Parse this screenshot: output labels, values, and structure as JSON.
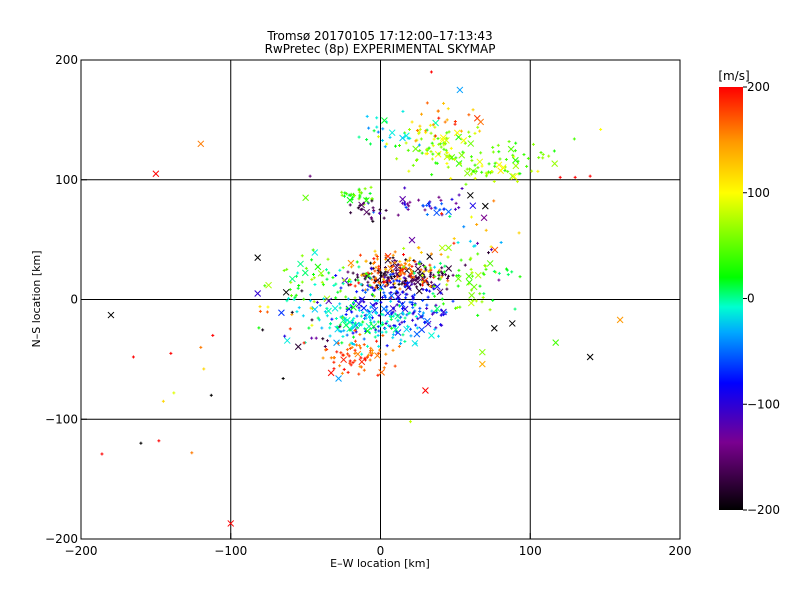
{
  "chart_data": {
    "type": "scatter",
    "title": "Tromsø 20170105 17:12:00–17:13:43",
    "subtitle": "RwPretec (8p) EXPERIMENTAL SKYMAP",
    "xlabel": "E–W location [km]",
    "ylabel": "N–S location [km]",
    "xlim": [
      -200,
      200
    ],
    "ylim": [
      -200,
      200
    ],
    "xticks": [
      -200,
      -100,
      0,
      100,
      200
    ],
    "yticks": [
      -200,
      -100,
      0,
      100,
      200
    ],
    "x_tick_labels": [
      "−200",
      "−100",
      "0",
      "100",
      "200"
    ],
    "y_tick_labels": [
      "−200",
      "−100",
      "0",
      "100",
      "200"
    ],
    "grid": true,
    "colorbar": {
      "label": "[m/s]",
      "range": [
        -200,
        200
      ],
      "ticks": [
        200,
        100,
        0,
        -100,
        -200
      ],
      "tick_labels": [
        "200",
        "100",
        "0",
        "−100",
        "−200"
      ],
      "colors": [
        "#000000",
        "#7a0090",
        "#0000ff",
        "#00e0ff",
        "#00ff00",
        "#ffff00",
        "#ff0000"
      ]
    },
    "marker_legend": "x = cross marker, + = plus marker",
    "points": [
      {
        "x": -150,
        "y": 105,
        "v": 200,
        "m": "x"
      },
      {
        "x": -120,
        "y": 130,
        "v": 160,
        "m": "x"
      },
      {
        "x": -180,
        "y": -13,
        "v": -200,
        "m": "x"
      },
      {
        "x": -100,
        "y": -187,
        "v": 200,
        "m": "x"
      },
      {
        "x": 160,
        "y": -17,
        "v": 150,
        "m": "x"
      },
      {
        "x": 140,
        "y": -48,
        "v": -200,
        "m": "x"
      },
      {
        "x": 117,
        "y": -36,
        "v": 40,
        "m": "x"
      },
      {
        "x": 88,
        "y": -20,
        "v": -200,
        "m": "x"
      },
      {
        "x": 76,
        "y": -24,
        "v": -200,
        "m": "x"
      },
      {
        "x": 68,
        "y": -54,
        "v": 140,
        "m": "x"
      },
      {
        "x": 68,
        "y": -44,
        "v": 60,
        "m": "x"
      },
      {
        "x": 30,
        "y": -76,
        "v": 200,
        "m": "x"
      },
      {
        "x": 53,
        "y": 175,
        "v": -50,
        "m": "x"
      },
      {
        "x": 60,
        "y": 87,
        "v": -200,
        "m": "x"
      },
      {
        "x": 70,
        "y": 78,
        "v": -200,
        "m": "x"
      },
      {
        "x": -50,
        "y": 85,
        "v": 50,
        "m": "x"
      },
      {
        "x": -82,
        "y": 5,
        "v": -110,
        "m": "x"
      },
      {
        "x": -82,
        "y": 35,
        "v": -200,
        "m": "x"
      },
      {
        "x": -63,
        "y": 6,
        "v": -200,
        "m": "x"
      },
      {
        "x": -28,
        "y": -66,
        "v": -50,
        "m": "x"
      },
      {
        "x": -165,
        "y": -48,
        "v": 200,
        "m": "+"
      },
      {
        "x": -140,
        "y": -45,
        "v": 200,
        "m": "+"
      },
      {
        "x": -148,
        "y": -118,
        "v": 200,
        "m": "+"
      },
      {
        "x": -160,
        "y": -120,
        "v": -200,
        "m": "+"
      },
      {
        "x": -186,
        "y": -129,
        "v": 200,
        "m": "+"
      },
      {
        "x": -126,
        "y": -128,
        "v": 160,
        "m": "+"
      },
      {
        "x": -113,
        "y": -80,
        "v": -200,
        "m": "+"
      },
      {
        "x": -118,
        "y": -58,
        "v": 120,
        "m": "+"
      },
      {
        "x": -112,
        "y": -30,
        "v": 200,
        "m": "+"
      },
      {
        "x": -120,
        "y": -40,
        "v": 160,
        "m": "+"
      },
      {
        "x": -145,
        "y": -85,
        "v": 120,
        "m": "+"
      },
      {
        "x": -138,
        "y": -78,
        "v": 90,
        "m": "+"
      },
      {
        "x": 34,
        "y": 190,
        "v": 200,
        "m": "+"
      },
      {
        "x": 120,
        "y": 102,
        "v": 200,
        "m": "+"
      },
      {
        "x": 130,
        "y": 102,
        "v": 200,
        "m": "+"
      },
      {
        "x": 140,
        "y": 103,
        "v": 200,
        "m": "+"
      },
      {
        "x": 147,
        "y": 142,
        "v": 100,
        "m": "+"
      },
      {
        "x": -65,
        "y": -66,
        "v": -200,
        "m": "+"
      },
      {
        "x": 20,
        "y": -102,
        "v": 80,
        "m": "+"
      },
      {
        "x": -47,
        "y": 103,
        "v": -150,
        "m": "+"
      }
    ],
    "clusters": [
      {
        "cx": 35,
        "cy": 128,
        "sx": 20,
        "sy": 12,
        "n": 75,
        "vmin": 30,
        "vmax": 110
      },
      {
        "cx": 5,
        "cy": 140,
        "sx": 18,
        "sy": 10,
        "n": 25,
        "vmin": -60,
        "vmax": 30
      },
      {
        "cx": 65,
        "cy": 110,
        "sx": 22,
        "sy": 8,
        "n": 55,
        "vmin": 30,
        "vmax": 110
      },
      {
        "cx": 40,
        "cy": 150,
        "sx": 20,
        "sy": 10,
        "n": 25,
        "vmin": 110,
        "vmax": 200
      },
      {
        "cx": 105,
        "cy": 120,
        "sx": 25,
        "sy": 12,
        "n": 25,
        "vmin": 20,
        "vmax": 70
      },
      {
        "cx": 30,
        "cy": 78,
        "sx": 25,
        "sy": 8,
        "n": 45,
        "vmin": -150,
        "vmax": -60
      },
      {
        "cx": -15,
        "cy": 87,
        "sx": 10,
        "sy": 6,
        "n": 28,
        "vmin": 10,
        "vmax": 70
      },
      {
        "cx": -10,
        "cy": 75,
        "sx": 10,
        "sy": 6,
        "n": 18,
        "vmin": -200,
        "vmax": -150
      },
      {
        "cx": 15,
        "cy": 20,
        "sx": 22,
        "sy": 9,
        "n": 150,
        "vmin": -200,
        "vmax": -150
      },
      {
        "cx": 10,
        "cy": 25,
        "sx": 25,
        "sy": 12,
        "n": 110,
        "vmin": 120,
        "vmax": 200
      },
      {
        "cx": 10,
        "cy": -5,
        "sx": 28,
        "sy": 18,
        "n": 170,
        "vmin": -120,
        "vmax": -60
      },
      {
        "cx": -10,
        "cy": -20,
        "sx": 30,
        "sy": 15,
        "n": 130,
        "vmin": -50,
        "vmax": 20
      },
      {
        "cx": -40,
        "cy": 15,
        "sx": 25,
        "sy": 15,
        "n": 70,
        "vmin": -20,
        "vmax": 80
      },
      {
        "cx": 55,
        "cy": 15,
        "sx": 25,
        "sy": 18,
        "n": 70,
        "vmin": 0,
        "vmax": 80
      },
      {
        "cx": -15,
        "cy": -48,
        "sx": 15,
        "sy": 10,
        "n": 70,
        "vmin": 150,
        "vmax": 200
      },
      {
        "cx": -50,
        "cy": -15,
        "sx": 30,
        "sy": 20,
        "n": 35,
        "vmin": -200,
        "vmax": 200
      },
      {
        "cx": 60,
        "cy": 50,
        "sx": 40,
        "sy": 25,
        "n": 30,
        "vmin": -200,
        "vmax": 200
      }
    ]
  }
}
